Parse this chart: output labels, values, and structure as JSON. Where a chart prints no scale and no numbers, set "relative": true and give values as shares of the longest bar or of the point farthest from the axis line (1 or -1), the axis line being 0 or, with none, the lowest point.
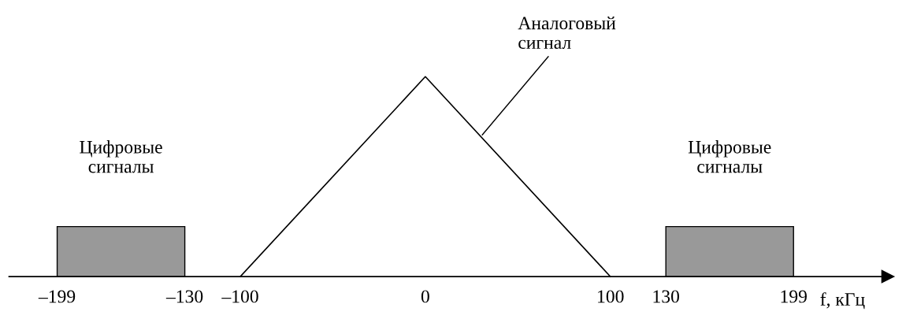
{
  "chart_data": {
    "type": "line",
    "relative": true,
    "xlabel": "f, кГц",
    "xlim": [
      -225,
      250
    ],
    "xticks": [
      {
        "value": -199,
        "label": "–199"
      },
      {
        "value": -130,
        "label": "–130"
      },
      {
        "value": -100,
        "label": "–100"
      },
      0,
      100,
      130,
      199
    ],
    "series": [
      {
        "type": "area",
        "color": "#999999",
        "x": [
          -199,
          -199,
          -130,
          -130
        ],
        "values": [
          0,
          0.25,
          0.25,
          0
        ]
      },
      {
        "color": "#000000",
        "x": [
          -100,
          0,
          100
        ],
        "values": [
          0,
          1,
          0
        ]
      },
      {
        "type": "area",
        "color": "#999999",
        "x": [
          130,
          130,
          199,
          199
        ],
        "values": [
          0,
          0.25,
          0.25,
          0
        ]
      }
    ],
    "annotations": [
      {
        "text": "Цифровые\nсигналы",
        "x": -164.5,
        "y": 0.25
      },
      {
        "text": "Аналоговый\nсигнал",
        "x": 30,
        "y": 0.7
      },
      {
        "text": "Цифровые\nсигналы",
        "x": 164.5,
        "y": 0.25
      }
    ],
    "grid": false,
    "legend": false
  }
}
